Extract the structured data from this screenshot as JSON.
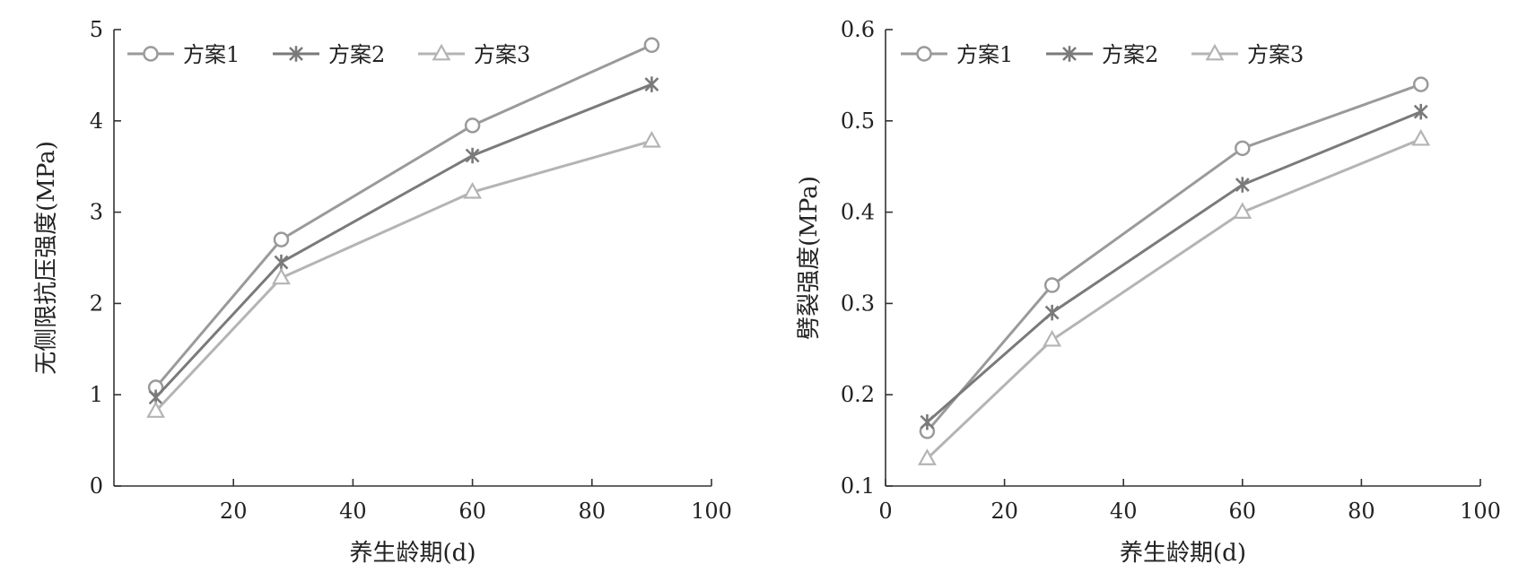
{
  "chart_data": [
    {
      "type": "line",
      "xlabel": "养生龄期(d)",
      "ylabel": "无侧限抗压强度(MPa)",
      "xlim": [
        0,
        100
      ],
      "ylim": [
        0,
        5
      ],
      "xticks": [
        20,
        40,
        60,
        80,
        100
      ],
      "yticks": [
        0,
        1,
        2,
        3,
        4,
        5
      ],
      "x": [
        7,
        28,
        60,
        90
      ],
      "legend_position": "top-left",
      "grid": false,
      "series": [
        {
          "name": "方案1",
          "values": [
            1.08,
            2.7,
            3.95,
            4.83
          ],
          "marker": "circle",
          "color": "#9a9a9a"
        },
        {
          "name": "方案2",
          "values": [
            0.97,
            2.45,
            3.62,
            4.4
          ],
          "marker": "star",
          "color": "#7a7a7a"
        },
        {
          "name": "方案3",
          "values": [
            0.82,
            2.28,
            3.22,
            3.78
          ],
          "marker": "triangle",
          "color": "#b4b4b4"
        }
      ]
    },
    {
      "type": "line",
      "xlabel": "养生龄期(d)",
      "ylabel": "劈裂强度(MPa)",
      "xlim": [
        0,
        100
      ],
      "ylim": [
        0.1,
        0.6
      ],
      "xticks": [
        0,
        20,
        40,
        60,
        80,
        100
      ],
      "yticks": [
        "0.1",
        "0.2",
        "0.3",
        "0.4",
        "0.5",
        "0.6"
      ],
      "x": [
        7,
        28,
        60,
        90
      ],
      "legend_position": "top-left",
      "grid": false,
      "series": [
        {
          "name": "方案1",
          "values": [
            0.16,
            0.32,
            0.47,
            0.54
          ],
          "marker": "circle",
          "color": "#9a9a9a"
        },
        {
          "name": "方案2",
          "values": [
            0.17,
            0.29,
            0.43,
            0.51
          ],
          "marker": "star",
          "color": "#7a7a7a"
        },
        {
          "name": "方案3",
          "values": [
            0.13,
            0.26,
            0.4,
            0.48
          ],
          "marker": "triangle",
          "color": "#b4b4b4"
        }
      ]
    }
  ]
}
